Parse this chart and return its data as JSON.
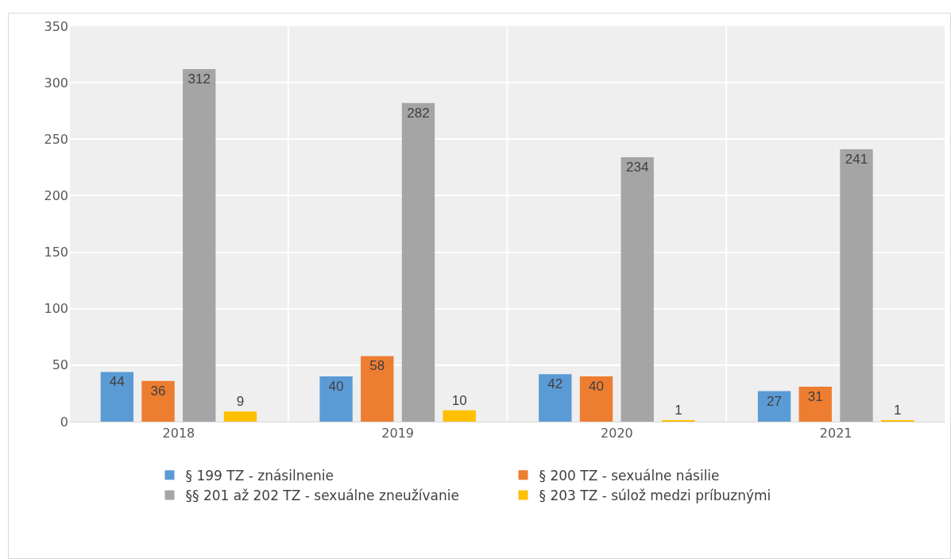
{
  "chart_data": {
    "type": "bar",
    "categories": [
      "2018",
      "2019",
      "2020",
      "2021"
    ],
    "series": [
      {
        "name": "§ 199 TZ - znásilnenie",
        "color": "#5b9bd5",
        "values": [
          44,
          40,
          42,
          27
        ]
      },
      {
        "name": "§ 200 TZ - sexuálne násilie",
        "color": "#ed7d31",
        "values": [
          36,
          58,
          40,
          31
        ]
      },
      {
        "name": "§§ 201 až 202 TZ - sexuálne zneužívanie",
        "color": "#a5a5a5",
        "values": [
          312,
          282,
          234,
          241
        ]
      },
      {
        "name": "§ 203 TZ - súlož medzi príbuznými",
        "color": "#ffc000",
        "values": [
          9,
          10,
          1,
          1
        ]
      }
    ],
    "ylim": [
      0,
      350
    ],
    "yticks": [
      0,
      50,
      100,
      150,
      200,
      250,
      300,
      350
    ],
    "grid": true,
    "legend": "bottom",
    "data_labels": true
  }
}
